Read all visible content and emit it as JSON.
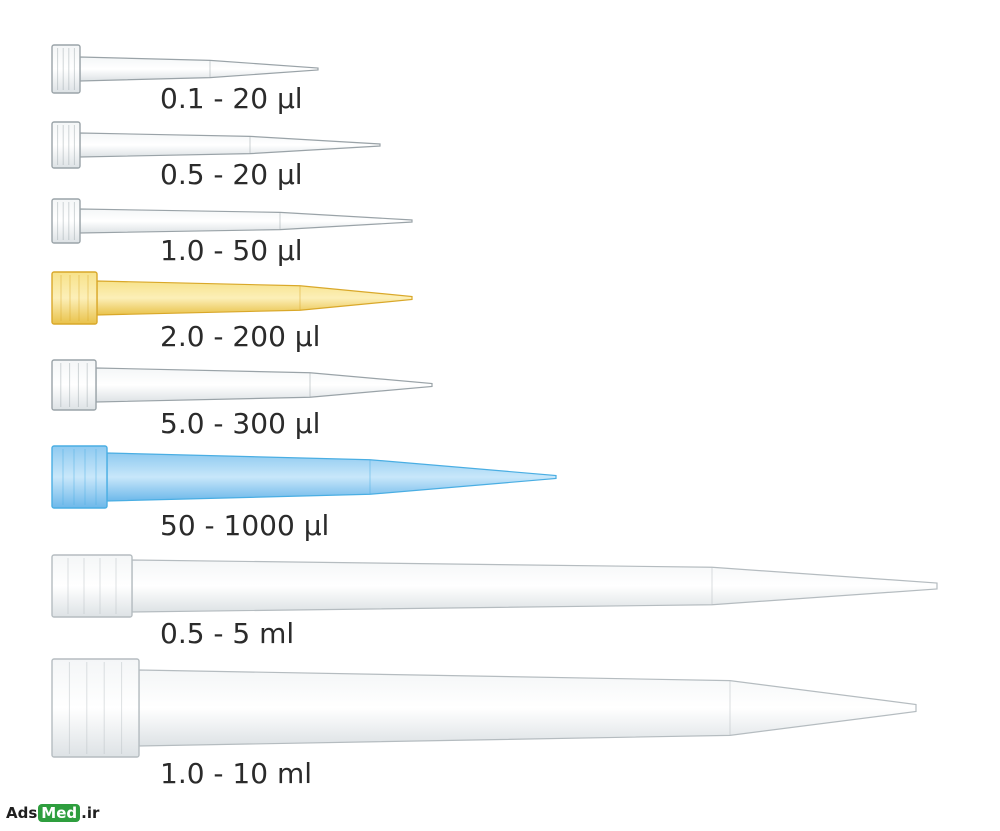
{
  "tips": [
    {
      "label": "0.1 - 20 µl",
      "color": "#c8cdd0",
      "accent": "#9aa3a8"
    },
    {
      "label": "0.5 - 20 µl",
      "color": "#c8cdd0",
      "accent": "#9aa3a8"
    },
    {
      "label": "1.0 - 50 µl",
      "color": "#c8cdd0",
      "accent": "#9aa3a8"
    },
    {
      "label": "2.0 - 200 µl",
      "color": "#f2d56a",
      "accent": "#d9a82a"
    },
    {
      "label": "5.0 - 300 µl",
      "color": "#cfd3d6",
      "accent": "#9aa3a8"
    },
    {
      "label": "50 - 1000 µl",
      "color": "#9fd3f2",
      "accent": "#4aaee3"
    },
    {
      "label": "0.5 - 5 ml",
      "color": "#e4e8ea",
      "accent": "#b5bcc0"
    },
    {
      "label": "1.0 - 10 ml",
      "color": "#e4e8ea",
      "accent": "#b5bcc0"
    }
  ],
  "watermark": {
    "prefix": "Ads",
    "pill": "Med",
    "suffix": ".ir",
    "pill_color": "#2e9e3e"
  }
}
